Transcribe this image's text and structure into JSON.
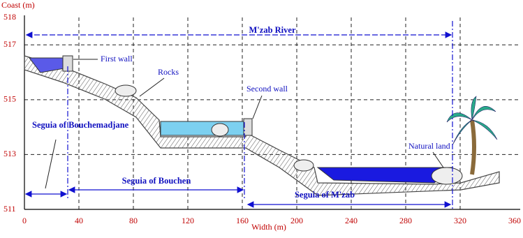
{
  "axes": {
    "y_label": "Coast (m)",
    "x_label": "Width (m)",
    "xticks": [
      0,
      40,
      80,
      120,
      160,
      200,
      240,
      280,
      320,
      360
    ],
    "yticks": [
      518,
      517,
      515,
      513,
      511
    ]
  },
  "labels": {
    "river": "M'zab River",
    "first_wall": "First wall",
    "rocks": "Rocks",
    "second_wall": "Second wall",
    "natural_land": "Natural land",
    "seguia_bouchemadjane": "Seguia of Bouchemadjane",
    "seguia_bouchen": "Seguia of Bouchen",
    "seguia_mzab": "Seguia of M'zab"
  }
}
